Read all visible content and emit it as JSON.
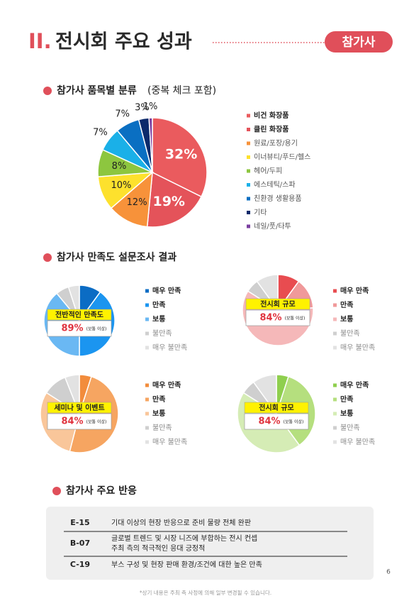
{
  "header": {
    "number": "II.",
    "title": "전시회 주요 성과",
    "badge": "참가사"
  },
  "survey_heading": "참가사 만족도 설문조사 결과",
  "chart_data": [
    {
      "type": "pie",
      "title": "참가사 품목별 분류",
      "subtitle": "(중복 체크 포함)",
      "categories": [
        "비건 화장품",
        "클린 화장품",
        "원료/포장/용기",
        "이너뷰티/푸드/헬스",
        "헤어/두피",
        "에스테틱/스파",
        "친환경 생활용품",
        "기타",
        "네일/풋/타투"
      ],
      "values": [
        32,
        19,
        12,
        10,
        8,
        7,
        7,
        3,
        1
      ],
      "value_labels": [
        "32%",
        "19%",
        "12%",
        "10%",
        "8%",
        "7%",
        "7%",
        "3%",
        "1%"
      ],
      "colors": [
        "#ea5b5e",
        "#e4535a",
        "#f7923a",
        "#fde12d",
        "#8dc63f",
        "#1ab0e8",
        "#0a6fc2",
        "#0b2a6b",
        "#7b3fa0"
      ]
    },
    {
      "type": "pie",
      "title": "전반적인 만족도",
      "summary": "89%",
      "summary_note": "(보통 이상)",
      "categories": [
        "매우 만족",
        "만족",
        "보통",
        "불만족",
        "매우 불만족"
      ],
      "values": [
        10,
        40,
        39,
        6,
        5
      ],
      "colors": [
        "#0b6cc4",
        "#1b95f0",
        "#6ab8f3",
        "#cfcfcf",
        "#e2e2e2"
      ]
    },
    {
      "type": "pie",
      "title": "전시회 규모",
      "summary": "84%",
      "summary_note": "(보통 이상)",
      "categories": [
        "매우 만족",
        "만족",
        "보통",
        "불만족",
        "매우 불만족"
      ],
      "values": [
        10,
        14,
        60,
        6,
        10
      ],
      "colors": [
        "#e84c50",
        "#f0999a",
        "#f5b8b9",
        "#cfcfcf",
        "#e2e2e2"
      ]
    },
    {
      "type": "pie",
      "title": "세미나 및 이벤트",
      "summary": "84%",
      "summary_note": "(보통 이상)",
      "categories": [
        "매우 만족",
        "만족",
        "보통",
        "불만족",
        "매우 불만족"
      ],
      "values": [
        5,
        49,
        30,
        10,
        6
      ],
      "colors": [
        "#f28c3c",
        "#f6a561",
        "#f9c69a",
        "#cfcfcf",
        "#e2e2e2"
      ]
    },
    {
      "type": "pie",
      "title": "전시회 규모",
      "summary": "84%",
      "summary_note": "(보통 이상)",
      "categories": [
        "매우 만족",
        "만족",
        "보통",
        "불만족",
        "매우 불만족"
      ],
      "values": [
        5,
        35,
        44,
        6,
        10
      ],
      "colors": [
        "#8fcf4e",
        "#b5df7e",
        "#d5ecb5",
        "#cfcfcf",
        "#e2e2e2"
      ]
    }
  ],
  "reactions": {
    "heading": "참가사 주요 반응",
    "rows": [
      {
        "code": "E-15",
        "lines": [
          "기대 이상의 현장 반응으로 준비 물량 전체 완판"
        ]
      },
      {
        "code": "B-07",
        "lines": [
          "글로벌 트렌드 및 시장 니즈에 부합하는 전시 컨셉",
          "주최 측의 적극적인 응대 긍정적"
        ]
      },
      {
        "code": "C-19",
        "lines": [
          "부스 구성 및 현장 판매 환경/조건에 대한 높은 만족"
        ]
      }
    ]
  },
  "footer": {
    "page": "6",
    "note": "*상기 내용은 주최 측 사정에 의해 일부 변경될 수 있습니다."
  }
}
